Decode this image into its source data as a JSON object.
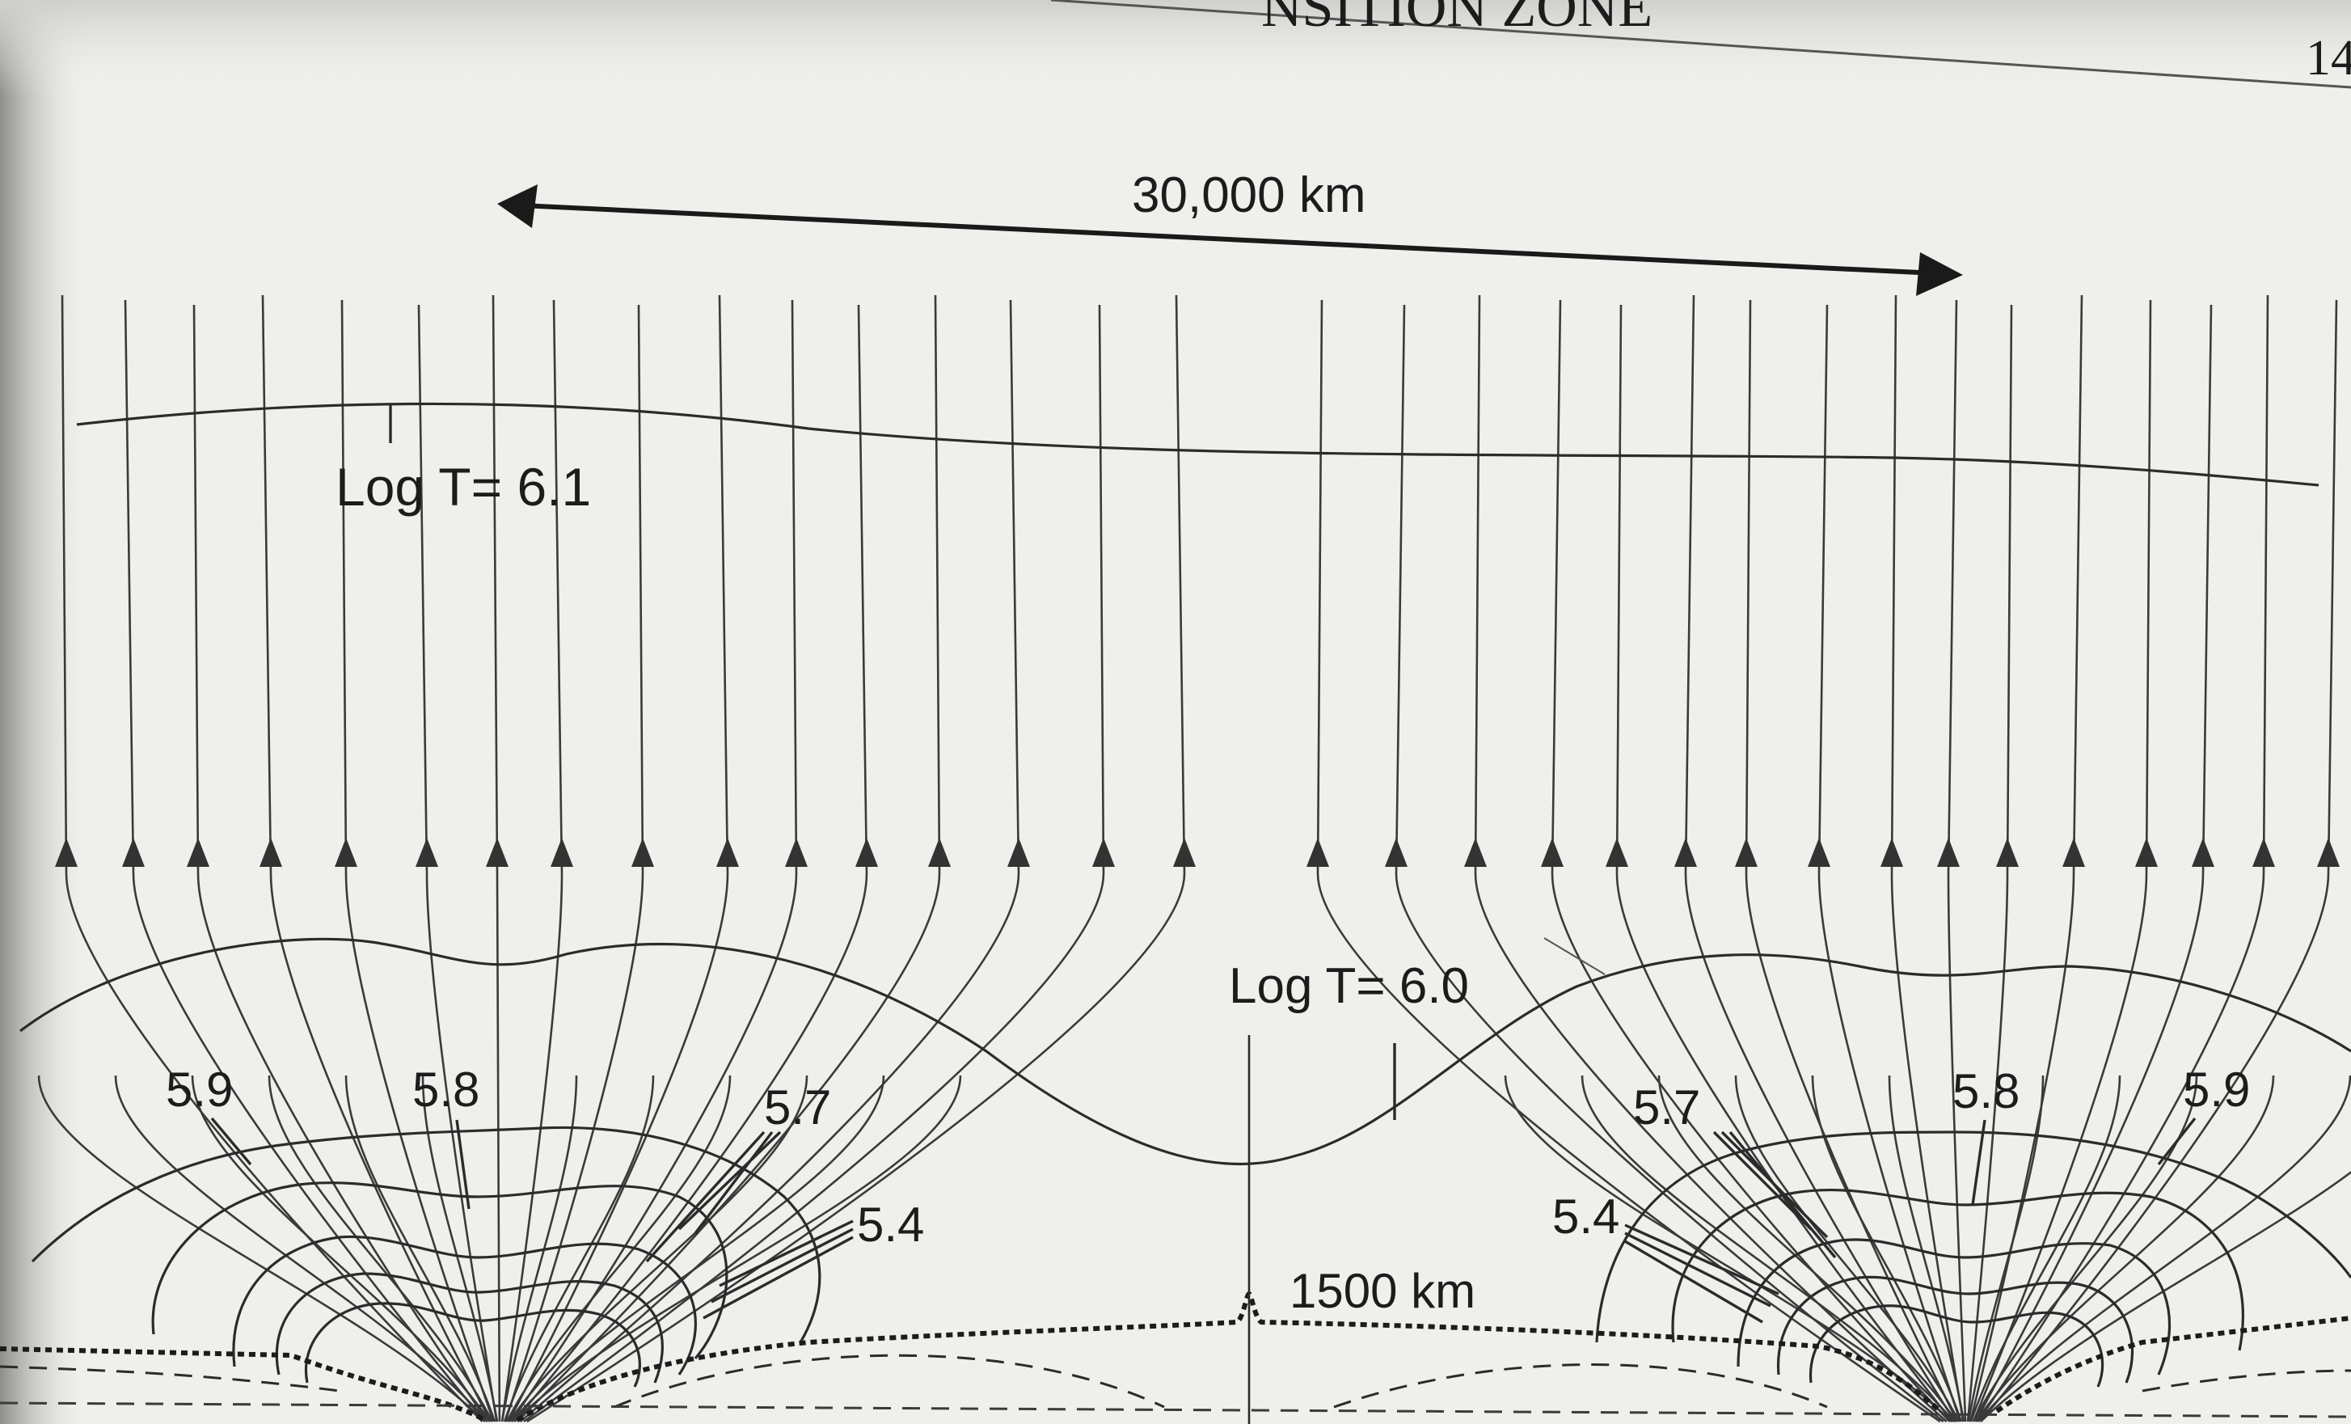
{
  "header": {
    "running_title": "NSITION ZONE",
    "page_number": "14"
  },
  "diagram": {
    "scale_label": "30,000 km",
    "base_label": "1500 km",
    "top_isotherm_label": "Log T= 6.1",
    "mid_isotherm_label": "Log T= 6.0",
    "contour_labels": {
      "left_59": "5.9",
      "left_58": "5.8",
      "left_57": "5.7",
      "left_54": "5.4",
      "right_57": "5.7",
      "right_54": "5.4",
      "right_58": "5.8",
      "right_59": "5.9"
    }
  },
  "colors": {
    "paper": "#efefec",
    "ink": "#1c1c1c",
    "field_line": "#3a3a3a",
    "shadow": "#b0b0ad"
  }
}
